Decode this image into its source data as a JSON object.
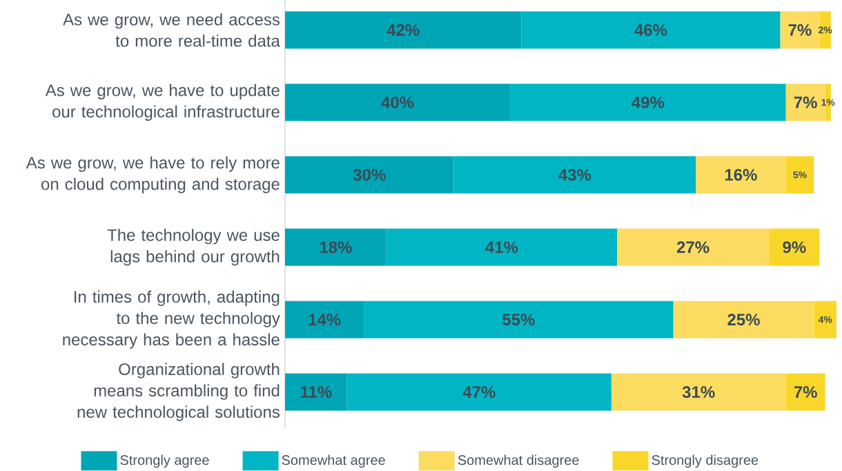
{
  "chart_data": {
    "type": "bar",
    "orientation": "horizontal",
    "stacked": true,
    "legend": "bottom",
    "categories": [
      "As we grow, we need access to more real-time data",
      "As we grow, we have to update our technological infrastructure",
      "As we grow, we have to rely more on cloud computing and storage",
      "The technology we use lags behind our growth",
      "In times of growth, adapting to the new technology necessary has been a hassle",
      "Organizational growth means scrambling to find new technological solutions"
    ],
    "series": [
      {
        "name": "Strongly agree",
        "color": "#00a5b6",
        "values": [
          42,
          40,
          30,
          18,
          14,
          11
        ],
        "value_labels": [
          "42%",
          "40%",
          "30%",
          "18%",
          "14%",
          "11%"
        ]
      },
      {
        "name": "Somewhat agree",
        "color": "#00b5c4",
        "values": [
          46,
          49,
          43,
          41,
          55,
          47
        ],
        "value_labels": [
          "46%",
          "49%",
          "43%",
          "41%",
          "55%",
          "47%"
        ]
      },
      {
        "name": "Somewhat disagree",
        "color": "#fbdc60",
        "values": [
          7,
          7,
          16,
          27,
          25,
          31
        ],
        "value_labels": [
          "7%",
          "7%",
          "16%",
          "27%",
          "25%",
          "31%"
        ]
      },
      {
        "name": "Strongly disagree",
        "color": "#f9d72a",
        "values": [
          2,
          1,
          5,
          9,
          4,
          7
        ],
        "value_labels": [
          "2%",
          "1%",
          "5%",
          "9%",
          "4%",
          "7%"
        ]
      }
    ]
  }
}
